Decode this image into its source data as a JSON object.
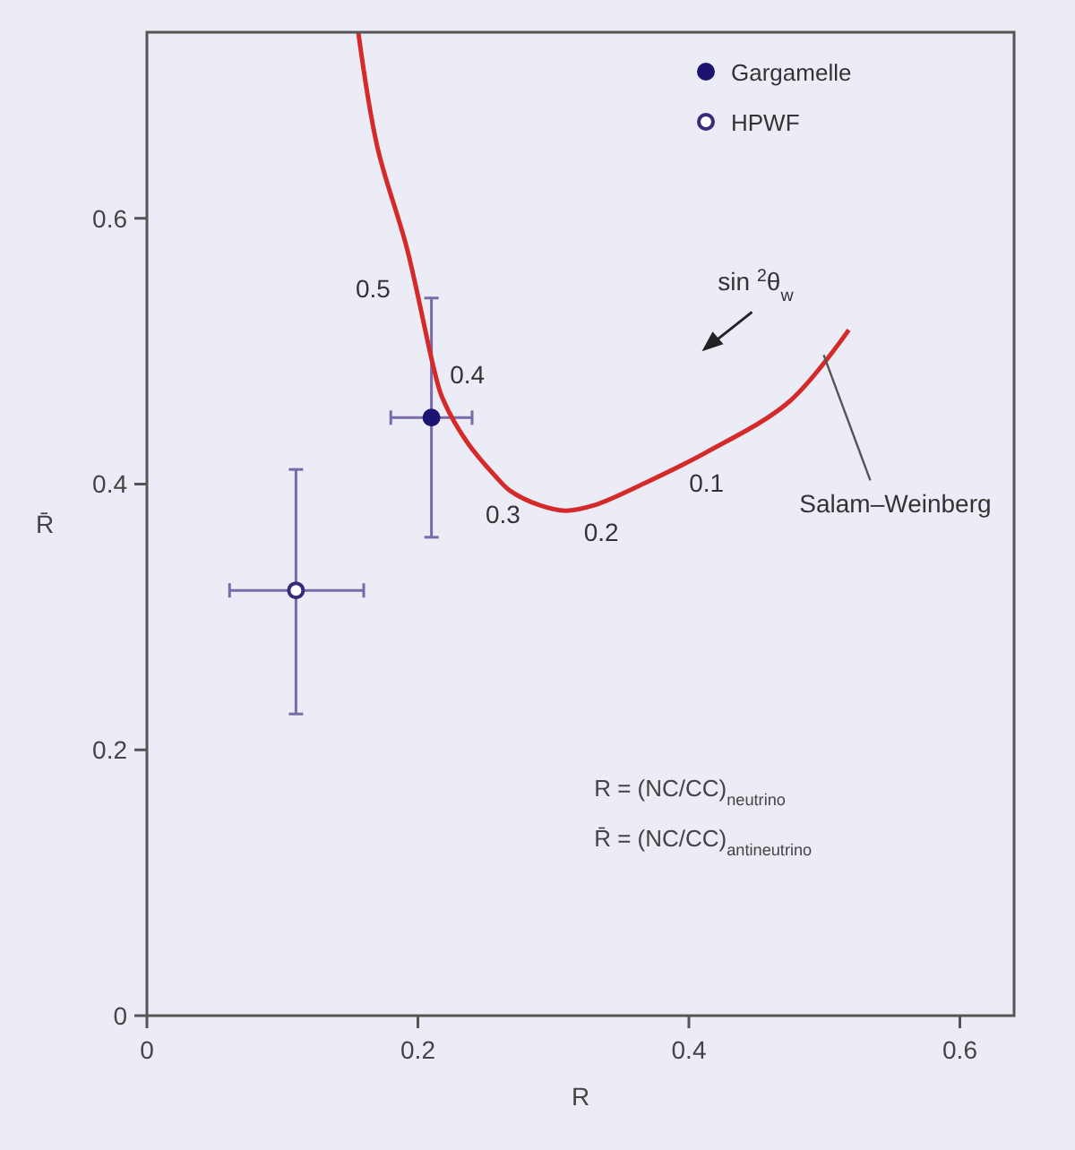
{
  "chart_data": {
    "type": "scatter",
    "xlabel": "R",
    "ylabel": "R̄",
    "xlim": [
      0,
      0.64
    ],
    "ylim": [
      0,
      0.74
    ],
    "xticks": [
      0,
      0.2,
      0.4,
      0.6
    ],
    "yticks": [
      0,
      0.2,
      0.4,
      0.6
    ],
    "grid": false,
    "legend": "top right",
    "series": [
      {
        "name": "Gargamelle",
        "color": "#1c1470",
        "marker": "circle",
        "x": [
          0.21
        ],
        "values": [
          0.45
        ],
        "errors": [
          [
            0.36,
            0.54
          ]
        ],
        "xerrors": [
          [
            0.18,
            0.24
          ]
        ]
      },
      {
        "name": "HPWF",
        "color": "#3a2a7a",
        "marker": "circle",
        "x": [
          0.11
        ],
        "values": [
          0.32
        ],
        "errors": [
          [
            0.227,
            0.411
          ]
        ],
        "xerrors": [
          [
            0.061,
            0.16
          ]
        ]
      },
      {
        "name": "Salam–Weinberg",
        "type": "line",
        "color": "#d42a2a",
        "line_style": "solid",
        "marker": "none",
        "x": [
          0.156,
          0.17,
          0.192,
          0.212,
          0.218,
          0.236,
          0.258,
          0.268,
          0.29,
          0.309,
          0.33,
          0.368,
          0.413,
          0.474,
          0.518
        ],
        "values": [
          0.74,
          0.654,
          0.577,
          0.486,
          0.465,
          0.432,
          0.405,
          0.395,
          0.384,
          0.38,
          0.384,
          0.401,
          0.424,
          0.462,
          0.516
        ]
      }
    ],
    "annotations": [
      {
        "text": "0.5",
        "x": 0.196,
        "y": 0.53
      },
      {
        "text": "0.4",
        "x": 0.218,
        "y": 0.465
      },
      {
        "text": "0.3",
        "x": 0.268,
        "y": 0.395
      },
      {
        "text": "0.2",
        "x": 0.33,
        "y": 0.384
      },
      {
        "text": "0.1",
        "x": 0.413,
        "y": 0.424
      },
      "sin $^{2}$θ$_{w}$",
      "R = (NC/CC)$_{neutrino}$",
      "R̄ = (NC/CC)$_{antineutrino}$"
    ]
  }
}
